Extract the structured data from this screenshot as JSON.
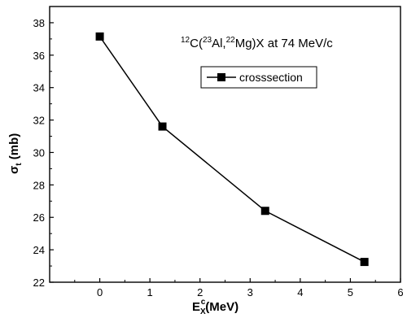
{
  "chart_data": {
    "type": "line",
    "x": [
      0,
      1.25,
      3.3,
      5.28
    ],
    "series": [
      {
        "name": "crosssection",
        "values": [
          37.15,
          31.6,
          26.4,
          23.25
        ],
        "color": "#000000",
        "marker": "square"
      }
    ],
    "xlim": [
      -1,
      6
    ],
    "ylim": [
      22,
      39
    ],
    "xticks": [
      0,
      1,
      2,
      3,
      4,
      5,
      6
    ],
    "yticks": [
      22,
      24,
      26,
      28,
      30,
      32,
      34,
      36,
      38
    ],
    "xtick_labels": [
      "0",
      "1",
      "2",
      "3",
      "4",
      "5",
      "6"
    ],
    "ytick_labels": [
      "22",
      "24",
      "26",
      "28",
      "30",
      "32",
      "34",
      "36",
      "38"
    ],
    "xlabel": {
      "base": "E",
      "sub": "X",
      "sup": "c",
      "rest": "(MeV)"
    },
    "ylabel": {
      "base": "σ",
      "sub": "t",
      "rest": " (mb)"
    },
    "annotation": {
      "p1": "12",
      "p2": "C(",
      "p3": "23",
      "p4": "Al,",
      "p5": "22",
      "p6": "Mg)X at 74 MeV/c"
    },
    "legend_position": "upper-right",
    "grid": false
  }
}
